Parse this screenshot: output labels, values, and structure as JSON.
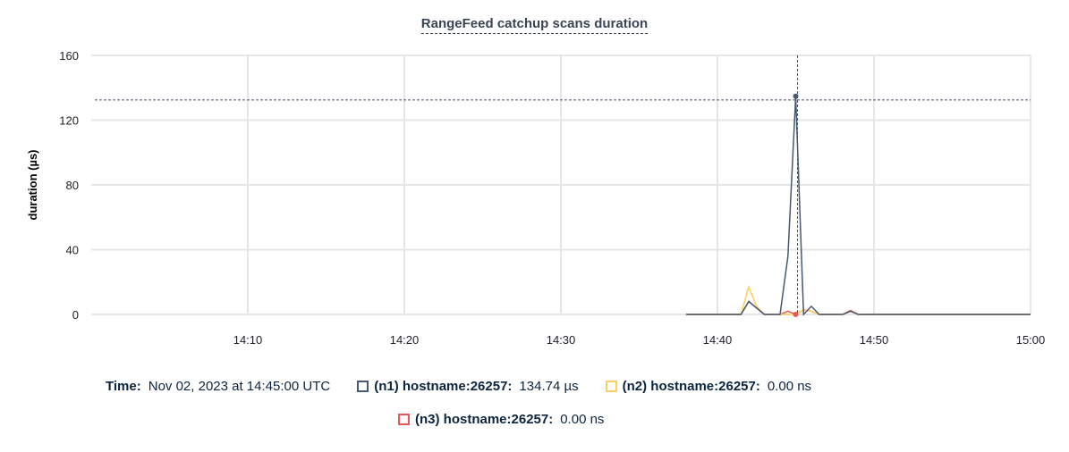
{
  "chart_data": {
    "type": "line",
    "title": "RangeFeed catchup scans duration",
    "ylabel": "duration (µs)",
    "xlabel": "",
    "ylim": [
      0,
      160
    ],
    "yticks": [
      "0",
      "40",
      "80",
      "120",
      "160"
    ],
    "xlim": [
      "14:00",
      "15:00"
    ],
    "xticks": [
      "14:10",
      "14:20",
      "14:30",
      "14:40",
      "14:50",
      "15:00"
    ],
    "grid": true,
    "x_start": "14:38:00",
    "x_step_seconds": 30,
    "series": [
      {
        "name": "(n1) hostname:26257",
        "color": "#475872",
        "values": [
          0,
          0,
          0,
          0,
          0,
          0,
          0,
          0,
          8,
          4,
          0,
          0,
          0,
          36,
          134.74,
          0,
          5,
          0,
          0,
          0,
          0,
          2,
          0,
          0,
          0,
          0,
          0,
          0,
          0,
          0,
          0,
          0,
          0,
          0,
          0,
          0,
          0,
          0,
          0,
          0,
          0,
          0,
          0,
          0,
          0
        ]
      },
      {
        "name": "(n2) hostname:26257",
        "color": "#ffcd5c",
        "values": [
          0,
          0,
          0,
          0,
          0,
          0,
          0,
          0,
          17,
          5,
          0,
          0,
          0,
          0,
          0,
          3,
          2,
          0,
          0,
          0,
          0,
          2,
          0,
          0,
          0,
          0,
          0,
          0,
          0,
          0,
          0,
          0,
          0,
          0,
          0,
          0,
          0,
          0,
          0,
          0,
          0,
          0,
          0,
          0,
          0
        ]
      },
      {
        "name": "(n3) hostname:26257",
        "color": "#ee5555",
        "values": [
          0,
          0,
          0,
          0,
          0,
          0,
          0,
          0,
          8,
          4,
          0,
          0,
          0,
          2,
          0,
          3,
          2,
          0,
          0,
          0,
          0,
          2.5,
          0,
          0,
          0,
          0,
          0,
          0,
          0,
          0,
          0,
          0,
          0,
          0,
          0,
          0,
          0,
          0,
          0,
          0,
          0,
          0,
          0,
          0,
          0
        ]
      }
    ],
    "hover": {
      "time": "14:45:00",
      "label": "Time:",
      "time_text": "Nov 02, 2023 at 14:45:00 UTC",
      "values": [
        "134.74 µs",
        "0.00 ns",
        "0.00 ns"
      ],
      "names": [
        "(n1) hostname:26257:",
        "(n2) hostname:26257:",
        "(n3) hostname:26257:"
      ]
    }
  }
}
